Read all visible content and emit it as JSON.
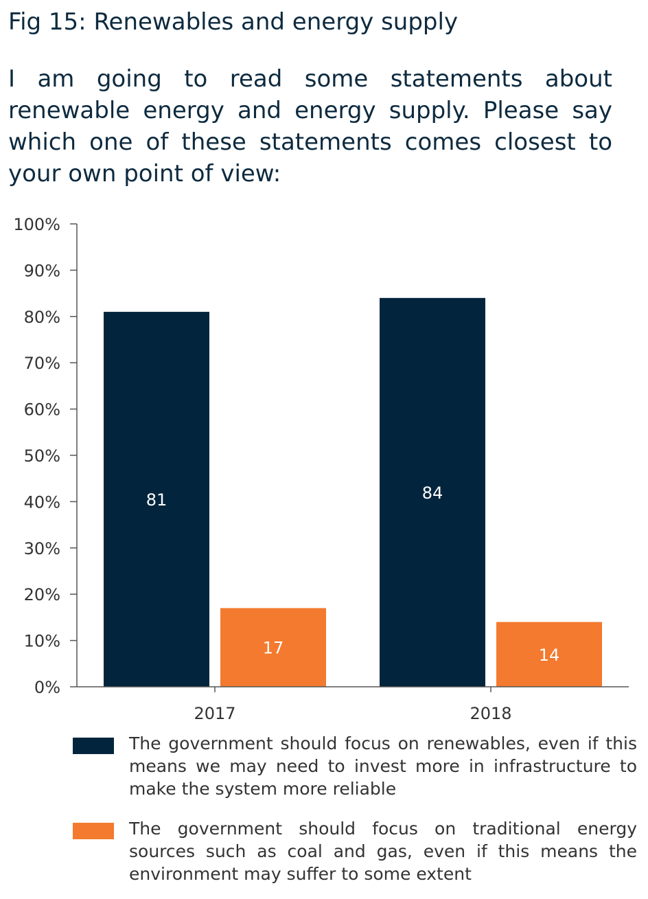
{
  "header": {
    "title": "Fig 15: Renewables and energy supply",
    "question": "I am going to read some statements about renewable energy and energy supply. Please say which one of these statements comes closest to your own point of view:"
  },
  "chart_data": {
    "type": "bar",
    "categories": [
      "2017",
      "2018"
    ],
    "series": [
      {
        "name": "The government should focus on renewables, even if this means we may need to invest more in infrastructure to make the system more reliable",
        "values": [
          81,
          84
        ],
        "labels": [
          "81",
          "84"
        ],
        "color": "#02253d"
      },
      {
        "name": "The government should focus on traditional energy sources such as coal and gas, even if this means the environment may suffer to some extent",
        "values": [
          17,
          14
        ],
        "labels": [
          "17",
          "14"
        ],
        "color": "#f37a2e"
      }
    ],
    "yticks": [
      "0%",
      "10%",
      "20%",
      "30%",
      "40%",
      "50%",
      "60%",
      "70%",
      "80%",
      "90%",
      "100%"
    ],
    "ylim": [
      0,
      100
    ],
    "grid": false,
    "legend": "bottom"
  }
}
